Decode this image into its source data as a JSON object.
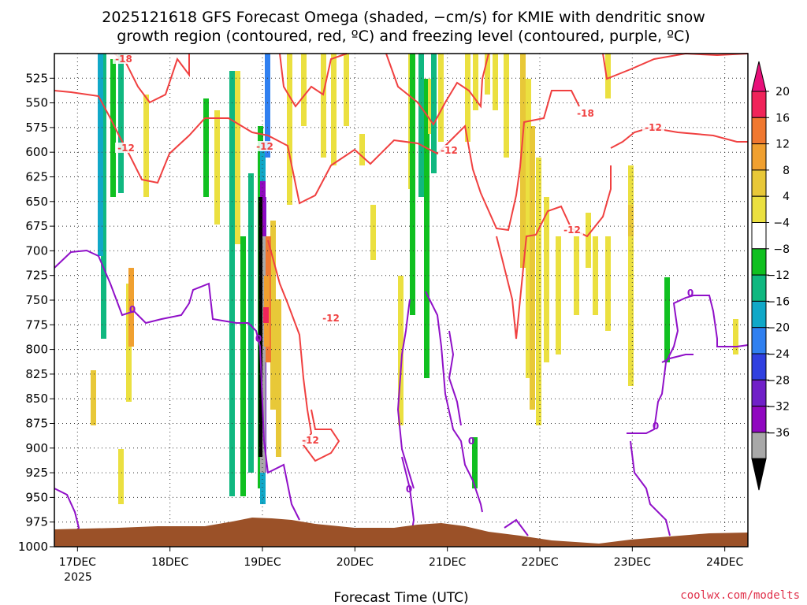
{
  "chart_data": {
    "type": "heatmap",
    "title_line1": "2025121618 GFS Forecast Omega (shaded, −cm/s) for KMIE with dendritic snow",
    "title_line2": "growth region (contoured, red, ºC) and freezing level (contoured, purple, ºC)",
    "xlabel": "Forecast Time (UTC)",
    "x_tick_labels": [
      "17DEC",
      "18DEC",
      "19DEC",
      "20DEC",
      "21DEC",
      "22DEC",
      "23DEC",
      "24DEC"
    ],
    "x_sub_label": "2025",
    "x_range_days_dec": [
      16.75,
      24.25
    ],
    "y_tick_labels": [
      "525",
      "550",
      "575",
      "600",
      "625",
      "650",
      "675",
      "700",
      "725",
      "750",
      "775",
      "800",
      "825",
      "850",
      "875",
      "900",
      "925",
      "950",
      "975",
      "1000"
    ],
    "y_range_hpa": [
      1000,
      500
    ],
    "grid": "dotted",
    "colorbar": {
      "labels": [
        "20",
        "16",
        "12",
        "8",
        "4",
        "−4",
        "−8",
        "−12",
        "−16",
        "−20",
        "−24",
        "−28",
        "−32",
        "−36"
      ],
      "colors": [
        "#f0245a",
        "#f07830",
        "#f0a030",
        "#e8c838",
        "#ebe040",
        "#ffffff",
        "#10c020",
        "#10b880",
        "#10a8c8",
        "#3080f0",
        "#3040e0",
        "#7020c8",
        "#9008c0",
        "#a8a8a8"
      ],
      "top_triangle_color": "#e8107a",
      "bottom_triangle_color": "#000000"
    },
    "red_contour_labels": [
      "-18",
      "-12",
      "-12",
      "-12",
      "-18",
      "-12",
      "-12",
      "-12",
      "-12"
    ],
    "purple_contour_labels": [
      "0",
      "0",
      "0",
      "0",
      "0",
      "0"
    ],
    "colors": {
      "dgz_contour": "#f04040",
      "freezing_contour": "#9010c8",
      "terrain": "#9b5128"
    },
    "credit": "coolwx.com/modelts"
  }
}
